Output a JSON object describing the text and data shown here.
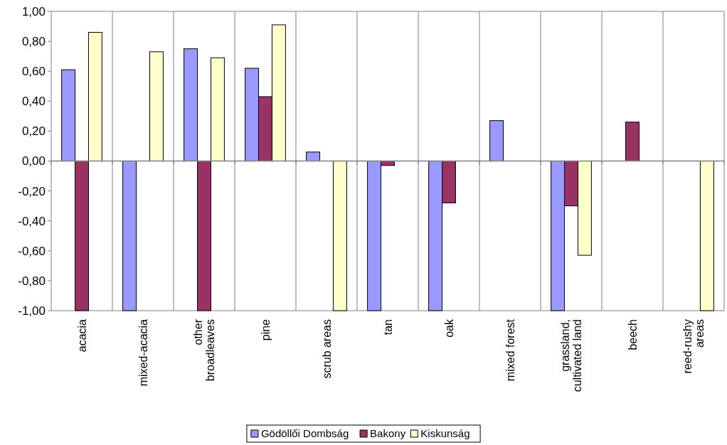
{
  "chart_data": {
    "type": "bar",
    "categories": [
      "acacia",
      "mixed-acacia",
      "other broadleaves",
      "pine",
      "scrub areas",
      "tan",
      "oak",
      "mixed forest",
      "grassland, cultivated land",
      "beech",
      "reed-rushy areas"
    ],
    "series": [
      {
        "name": "Gödöllői Dombság",
        "color": "#9999ff",
        "values": [
          0.61,
          -1.0,
          0.75,
          0.62,
          0.06,
          -1.0,
          -1.0,
          0.27,
          -1.0,
          null,
          null
        ]
      },
      {
        "name": "Bakony",
        "color": "#993366",
        "values": [
          -1.0,
          null,
          -1.0,
          0.43,
          null,
          -0.03,
          -0.28,
          null,
          -0.3,
          0.26,
          null
        ]
      },
      {
        "name": "Kiskunság",
        "color": "#ffffcc",
        "values": [
          0.86,
          0.73,
          0.69,
          0.91,
          -1.0,
          null,
          null,
          null,
          -0.63,
          null,
          -1.0
        ]
      }
    ],
    "ylim": [
      -1,
      1
    ],
    "yticks": [
      {
        "value": -1,
        "label": "-1,00"
      },
      {
        "value": -0.8,
        "label": "-0,80"
      },
      {
        "value": -0.6,
        "label": "-0,60"
      },
      {
        "value": -0.4,
        "label": "-0,40"
      },
      {
        "value": -0.2,
        "label": "-0,20"
      },
      {
        "value": 0,
        "label": "0,00"
      },
      {
        "value": 0.2,
        "label": "0,20"
      },
      {
        "value": 0.4,
        "label": "0,40"
      },
      {
        "value": 0.6,
        "label": "0,60"
      },
      {
        "value": 0.8,
        "label": "0,80"
      },
      {
        "value": 1,
        "label": "1,00"
      }
    ],
    "grid": "x",
    "legend": "bottom"
  }
}
